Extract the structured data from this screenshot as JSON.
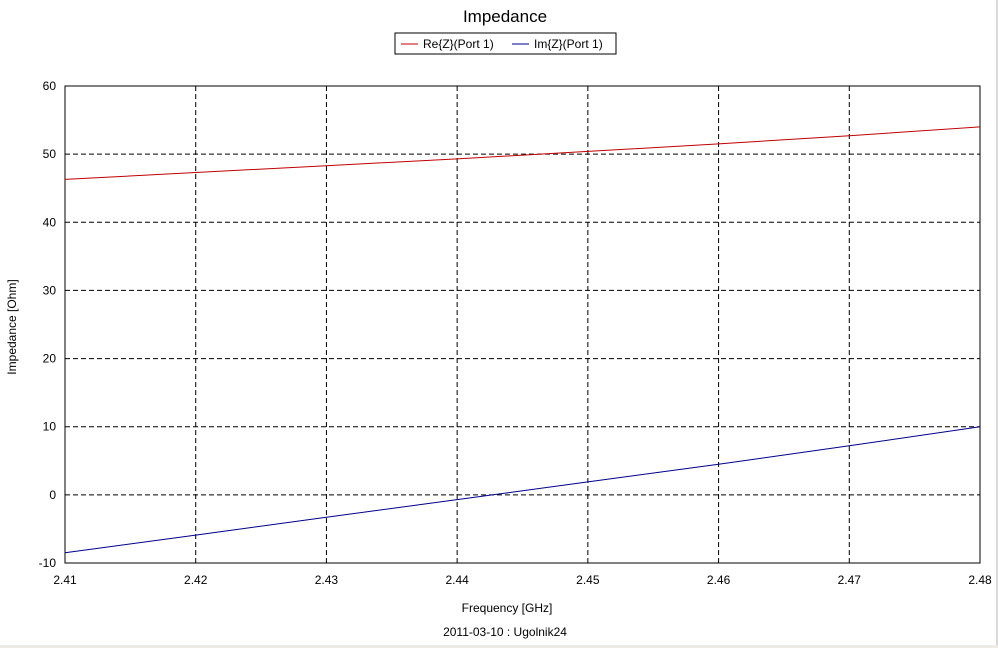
{
  "chart_data": {
    "type": "line",
    "title": "Impedance",
    "xlabel": "Frequency [GHz]",
    "ylabel": "Impedance [Ohm]",
    "footer": "2011-03-10 : Ugolnik24",
    "xlim": [
      2.41,
      2.48
    ],
    "ylim": [
      -10,
      60
    ],
    "x_ticks": [
      "2.41",
      "2.42",
      "2.43",
      "2.44",
      "2.45",
      "2.46",
      "2.47",
      "2.48"
    ],
    "y_ticks": [
      "60",
      "50",
      "40",
      "30",
      "20",
      "10",
      "0",
      "-10"
    ],
    "grid": true,
    "legend_position": "top-center",
    "series": [
      {
        "name": "Re{Z}(Port 1)",
        "color": "#c00000",
        "x": [
          2.41,
          2.42,
          2.43,
          2.44,
          2.45,
          2.46,
          2.47,
          2.48
        ],
        "y": [
          46.3,
          47.3,
          48.3,
          49.3,
          50.4,
          51.5,
          52.7,
          54.0
        ]
      },
      {
        "name": "Im{Z}(Port 1)",
        "color": "#00008b",
        "x": [
          2.41,
          2.42,
          2.43,
          2.44,
          2.45,
          2.46,
          2.47,
          2.48
        ],
        "y": [
          -8.5,
          -5.9,
          -3.3,
          -0.7,
          1.9,
          4.5,
          7.2,
          10.0
        ]
      }
    ]
  }
}
